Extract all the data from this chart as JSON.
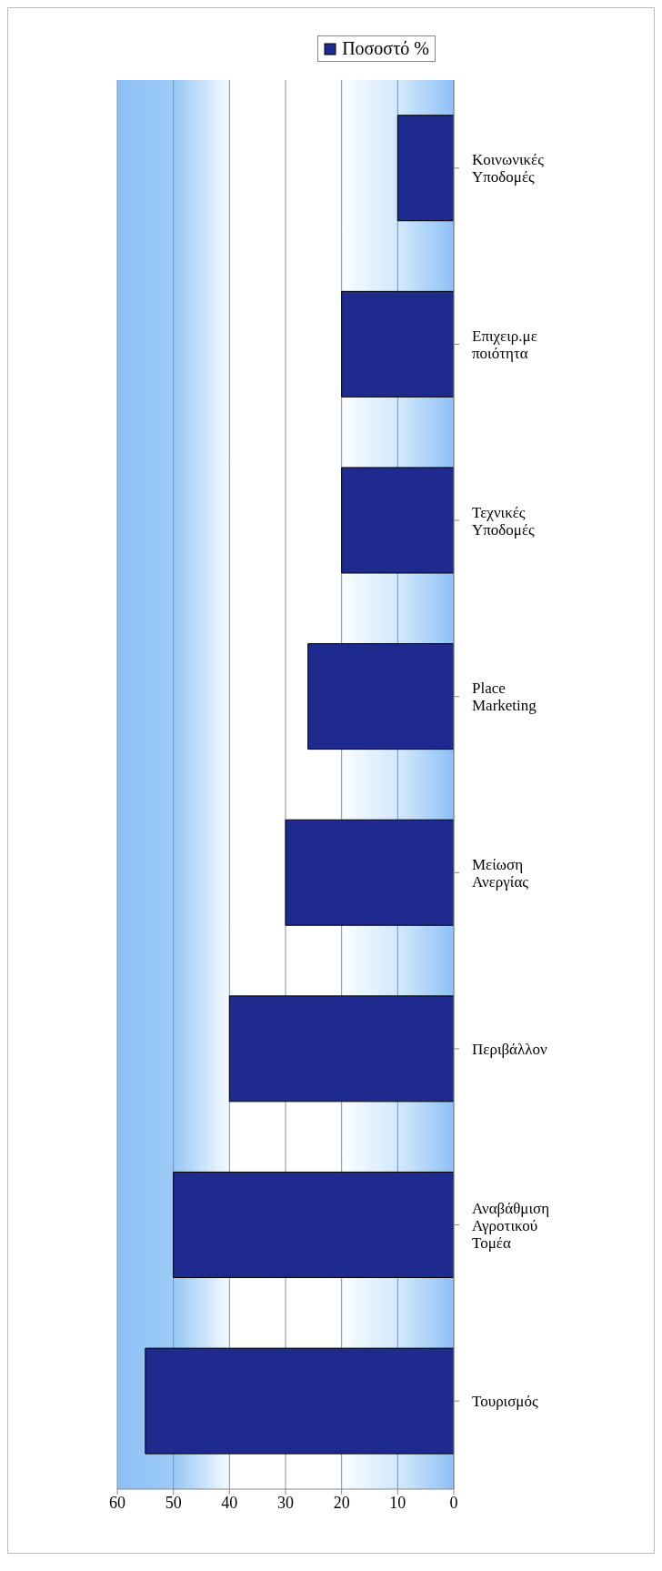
{
  "chart_data": {
    "type": "bar",
    "orientation": "horizontal",
    "categories": [
      "Κοινωνικές Υποδομές",
      "Επιχειρ.με ποιότητα",
      "Τεχνικές Υποδομές",
      "Place Marketing",
      "Μείωση Ανεργίας",
      "Περιβάλλον",
      "Αναβάθμιση Αγροτικού Τομέα",
      "Τουρισμός"
    ],
    "series": [
      {
        "name": "Ποσοστό %",
        "color": "#1f2a8f",
        "values": [
          10,
          20,
          20,
          26,
          30,
          40,
          50,
          55
        ]
      }
    ],
    "xlim": [
      60,
      0
    ],
    "xticks": [
      60,
      50,
      40,
      30,
      20,
      10,
      0
    ],
    "grid": "x",
    "legend": "top"
  }
}
